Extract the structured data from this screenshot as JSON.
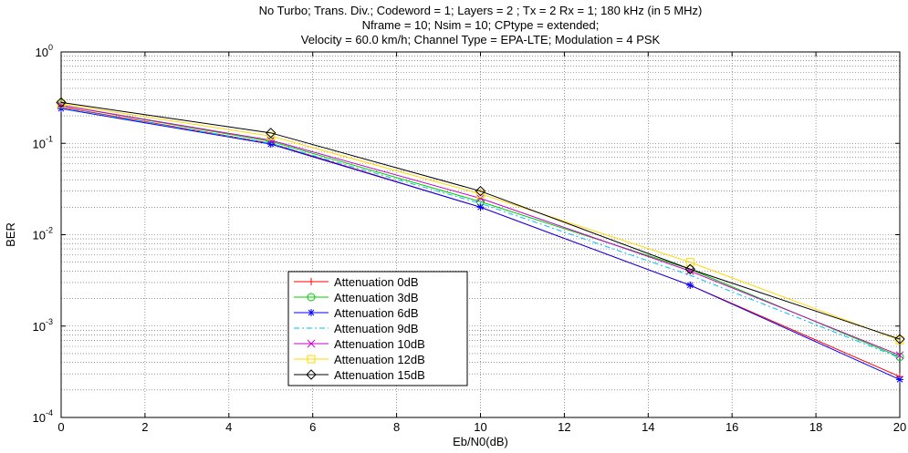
{
  "chart_data": {
    "type": "line",
    "title": [
      "No Turbo;  Trans. Div.; Codeword = 1; Layers = 2 ; Tx = 2 Rx = 1;  180 kHz (in 5 MHz)",
      "Nframe = 10; Nsim = 10; CPtype = extended;",
      "Velocity = 60.0 km/h; Channel Type = EPA-LTE; Modulation = 4 PSK"
    ],
    "xlabel": "Eb/N0(dB)",
    "ylabel": "BER",
    "xlim": [
      0,
      20
    ],
    "ylim": [
      0.0001,
      1
    ],
    "yscale": "log",
    "grid": true,
    "legend_position": "bottom-left-center",
    "x_ticks": [
      0,
      2,
      4,
      6,
      8,
      10,
      12,
      14,
      16,
      18,
      20
    ],
    "x_tick_labels": [
      "0",
      "2",
      "4",
      "6",
      "8",
      "10",
      "12",
      "14",
      "16",
      "18",
      "20"
    ],
    "y_tick_labels": [
      {
        "base": "10",
        "exp": "-4",
        "value": 0.0001
      },
      {
        "base": "10",
        "exp": "-3",
        "value": 0.001
      },
      {
        "base": "10",
        "exp": "-2",
        "value": 0.01
      },
      {
        "base": "10",
        "exp": "-1",
        "value": 0.1
      },
      {
        "base": "10",
        "exp": "0",
        "value": 1
      }
    ],
    "x": [
      0,
      5,
      10,
      15,
      20
    ],
    "series": [
      {
        "name": "Attenuation 0dB",
        "color": "#ff0000",
        "marker": "plus",
        "dash": "",
        "values": [
          0.25,
          0.1,
          0.02,
          0.0028,
          0.00028
        ]
      },
      {
        "name": "Attenuation 3dB",
        "color": "#00cc00",
        "marker": "circle",
        "dash": "",
        "values": [
          0.26,
          0.105,
          0.023,
          0.0042,
          0.00046
        ]
      },
      {
        "name": "Attenuation 6dB",
        "color": "#0000ff",
        "marker": "star",
        "dash": "",
        "values": [
          0.24,
          0.098,
          0.02,
          0.0028,
          0.00026
        ]
      },
      {
        "name": "Attenuation 9dB",
        "color": "#00bfff",
        "marker": "none",
        "dash": "6,3,2,3",
        "values": [
          0.245,
          0.1,
          0.022,
          0.0036,
          0.00045
        ]
      },
      {
        "name": "Attenuation 10dB",
        "color": "#cc00cc",
        "marker": "x",
        "dash": "",
        "values": [
          0.26,
          0.108,
          0.025,
          0.004,
          0.00048
        ]
      },
      {
        "name": "Attenuation 12dB",
        "color": "#ffd700",
        "marker": "square",
        "dash": "",
        "values": [
          0.27,
          0.12,
          0.028,
          0.005,
          0.0007
        ]
      },
      {
        "name": "Attenuation 15dB",
        "color": "#000000",
        "marker": "diamond",
        "dash": "",
        "values": [
          0.28,
          0.13,
          0.03,
          0.0042,
          0.00072
        ]
      }
    ]
  }
}
